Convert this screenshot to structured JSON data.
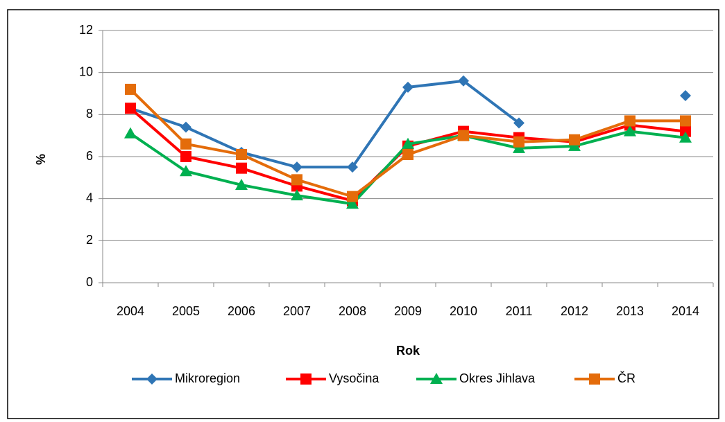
{
  "chart_data": {
    "type": "line",
    "xlabel": "Rok",
    "ylabel": "%",
    "categories": [
      "2004",
      "2005",
      "2006",
      "2007",
      "2008",
      "2009",
      "2010",
      "2011",
      "2012",
      "2013",
      "2014"
    ],
    "series": [
      {
        "name": "Mikroregion",
        "color": "#2f75b5",
        "marker": "diamond",
        "values": [
          8.3,
          7.4,
          6.2,
          5.5,
          5.5,
          9.3,
          9.6,
          7.6,
          null,
          null,
          8.9
        ]
      },
      {
        "name": "Vysočina",
        "color": "#ff0000",
        "marker": "square",
        "values": [
          8.3,
          6.0,
          5.45,
          4.6,
          3.9,
          6.5,
          7.2,
          6.9,
          6.7,
          7.5,
          7.2
        ]
      },
      {
        "name": "Okres Jihlava",
        "color": "#00b050",
        "marker": "triangle",
        "values": [
          7.1,
          5.3,
          4.65,
          4.15,
          3.75,
          6.6,
          7.0,
          6.4,
          6.5,
          7.2,
          6.9
        ]
      },
      {
        "name": "ČR",
        "color": "#e46c0a",
        "marker": "square",
        "values": [
          9.2,
          6.6,
          6.1,
          4.9,
          4.1,
          6.1,
          7.0,
          6.7,
          6.8,
          7.7,
          7.7
        ]
      }
    ],
    "ylim": [
      0,
      12
    ],
    "yticks": [
      0,
      2,
      4,
      6,
      8,
      10,
      12
    ],
    "grid": true,
    "legend": "bottom"
  }
}
